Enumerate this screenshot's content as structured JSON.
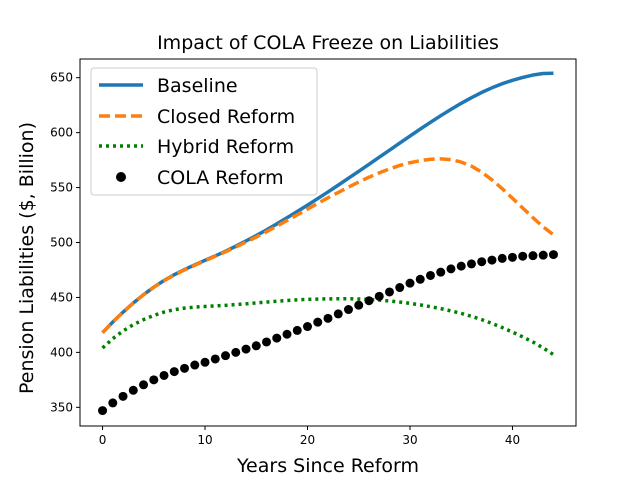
{
  "chart_data": {
    "type": "line",
    "title": "Impact of COLA Freeze on Liabilities",
    "xlabel": "Years Since Reform",
    "ylabel": "Pension Liabilities ($, Billion)",
    "xlim": [
      -2.2,
      46.2
    ],
    "ylim": [
      333,
      667
    ],
    "xticks": [
      0,
      10,
      20,
      30,
      40
    ],
    "yticks": [
      350,
      400,
      450,
      500,
      550,
      600,
      650
    ],
    "grid": false,
    "legend": "top-left",
    "x": [
      0,
      1,
      2,
      3,
      4,
      5,
      6,
      7,
      8,
      9,
      10,
      11,
      12,
      13,
      14,
      15,
      16,
      17,
      18,
      19,
      20,
      21,
      22,
      23,
      24,
      25,
      26,
      27,
      28,
      29,
      30,
      31,
      32,
      33,
      34,
      35,
      36,
      37,
      38,
      39,
      40,
      41,
      42,
      43,
      44
    ],
    "series": [
      {
        "name": "Baseline",
        "style": "solid",
        "color": "#1f77b4",
        "values": [
          418.0,
          427.6,
          436.6,
          444.9,
          452.5,
          459.3,
          465.4,
          470.7,
          475.4,
          479.7,
          483.8,
          487.8,
          492.1,
          496.6,
          501.4,
          506.3,
          511.5,
          516.9,
          522.5,
          528.2,
          534.0,
          540.0,
          546.0,
          552.2,
          558.5,
          564.8,
          571.2,
          577.6,
          584.0,
          590.5,
          596.9,
          603.2,
          609.4,
          615.4,
          621.2,
          626.7,
          631.8,
          636.6,
          640.8,
          644.5,
          647.6,
          650.2,
          652.4,
          653.8,
          654.0
        ]
      },
      {
        "name": "Closed Reform",
        "style": "dashed",
        "color": "#ff7f0e",
        "values": [
          418.0,
          427.6,
          436.6,
          444.9,
          452.5,
          459.3,
          465.2,
          470.4,
          475.0,
          479.3,
          483.4,
          487.5,
          491.6,
          495.9,
          500.4,
          505.0,
          509.8,
          514.8,
          520.0,
          525.2,
          530.4,
          535.6,
          540.7,
          545.6,
          550.4,
          555.0,
          559.4,
          563.4,
          567.0,
          570.1,
          572.6,
          574.5,
          575.8,
          576.1,
          575.4,
          573.2,
          569.5,
          564.0,
          557.0,
          549.0,
          540.3,
          531.4,
          522.6,
          514.2,
          507.0
        ]
      },
      {
        "name": "Hybrid Reform",
        "style": "dotted",
        "color": "#008000",
        "values": [
          404.0,
          412.5,
          419.5,
          425.2,
          429.8,
          433.6,
          436.7,
          438.9,
          440.3,
          441.2,
          441.8,
          442.3,
          442.8,
          443.5,
          444.2,
          445.0,
          445.8,
          446.5,
          447.2,
          447.8,
          448.2,
          448.5,
          448.7,
          448.8,
          448.8,
          448.6,
          448.2,
          447.6,
          446.8,
          445.8,
          444.6,
          443.2,
          441.6,
          439.8,
          437.8,
          435.5,
          432.8,
          429.8,
          426.4,
          422.6,
          418.5,
          414.1,
          409.4,
          404.0,
          398.0
        ]
      },
      {
        "name": "COLA Reform",
        "style": "markers",
        "color": "#000000",
        "values": [
          347.0,
          354.0,
          360.0,
          365.5,
          370.5,
          375.0,
          379.0,
          382.5,
          385.5,
          388.5,
          391.0,
          394.0,
          397.0,
          400.0,
          403.0,
          406.0,
          409.5,
          413.0,
          416.5,
          420.0,
          423.5,
          427.5,
          431.0,
          435.0,
          439.0,
          443.0,
          447.0,
          451.0,
          455.0,
          459.0,
          463.0,
          466.5,
          470.0,
          473.0,
          476.0,
          478.5,
          480.5,
          482.5,
          484.0,
          485.5,
          486.5,
          487.5,
          488.0,
          488.5,
          489.0
        ]
      }
    ]
  }
}
